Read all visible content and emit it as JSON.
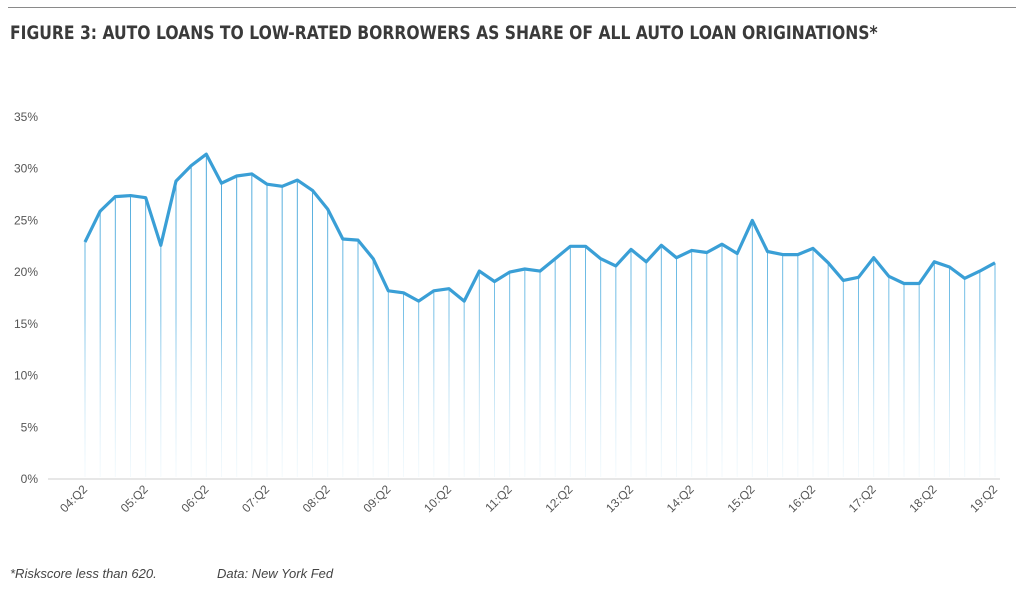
{
  "title": "FIGURE 3: AUTO LOANS TO LOW-RATED BORROWERS AS SHARE OF ALL AUTO LOAN ORIGINATIONS*",
  "footnote": "*Riskscore less than 620.",
  "source": "Data: New York Fed",
  "colors": {
    "line": "#3a9fd6",
    "title": "#3a3a3a"
  },
  "chart_data": {
    "type": "line",
    "title": "FIGURE 3: AUTO LOANS TO LOW-RATED BORROWERS AS SHARE OF ALL AUTO LOAN ORIGINATIONS*",
    "xlabel": "",
    "ylabel": "",
    "ylim": [
      0,
      35
    ],
    "y_ticks": [
      "0%",
      "5%",
      "10%",
      "15%",
      "20%",
      "25%",
      "30%",
      "35%"
    ],
    "x_ticks": [
      "04:Q2",
      "05:Q2",
      "06:Q2",
      "07:Q2",
      "08:Q2",
      "09:Q2",
      "10:Q2",
      "11:Q2",
      "12:Q2",
      "13:Q2",
      "14:Q2",
      "15:Q2",
      "16:Q2",
      "17:Q2",
      "18:Q2",
      "19:Q2"
    ],
    "x_start": "04:Q2",
    "x_end": "19:Q2",
    "frequency": "quarterly",
    "grid": false,
    "drop_lines": true,
    "values": [
      22.9,
      25.9,
      27.3,
      27.4,
      27.2,
      22.6,
      28.8,
      30.3,
      31.4,
      28.6,
      29.3,
      29.5,
      28.5,
      28.3,
      28.9,
      27.9,
      26.1,
      23.2,
      23.1,
      21.3,
      18.2,
      18.0,
      17.2,
      18.2,
      18.4,
      17.2,
      20.1,
      19.1,
      20.0,
      20.3,
      20.1,
      21.3,
      22.5,
      22.5,
      21.3,
      20.6,
      22.2,
      21.0,
      22.6,
      21.4,
      22.1,
      21.9,
      22.7,
      21.8,
      25.0,
      22.0,
      21.7,
      21.7,
      22.3,
      20.9,
      19.2,
      19.5,
      21.4,
      19.6,
      18.9,
      18.9,
      21.0,
      20.5,
      19.4,
      20.1,
      20.9
    ]
  }
}
